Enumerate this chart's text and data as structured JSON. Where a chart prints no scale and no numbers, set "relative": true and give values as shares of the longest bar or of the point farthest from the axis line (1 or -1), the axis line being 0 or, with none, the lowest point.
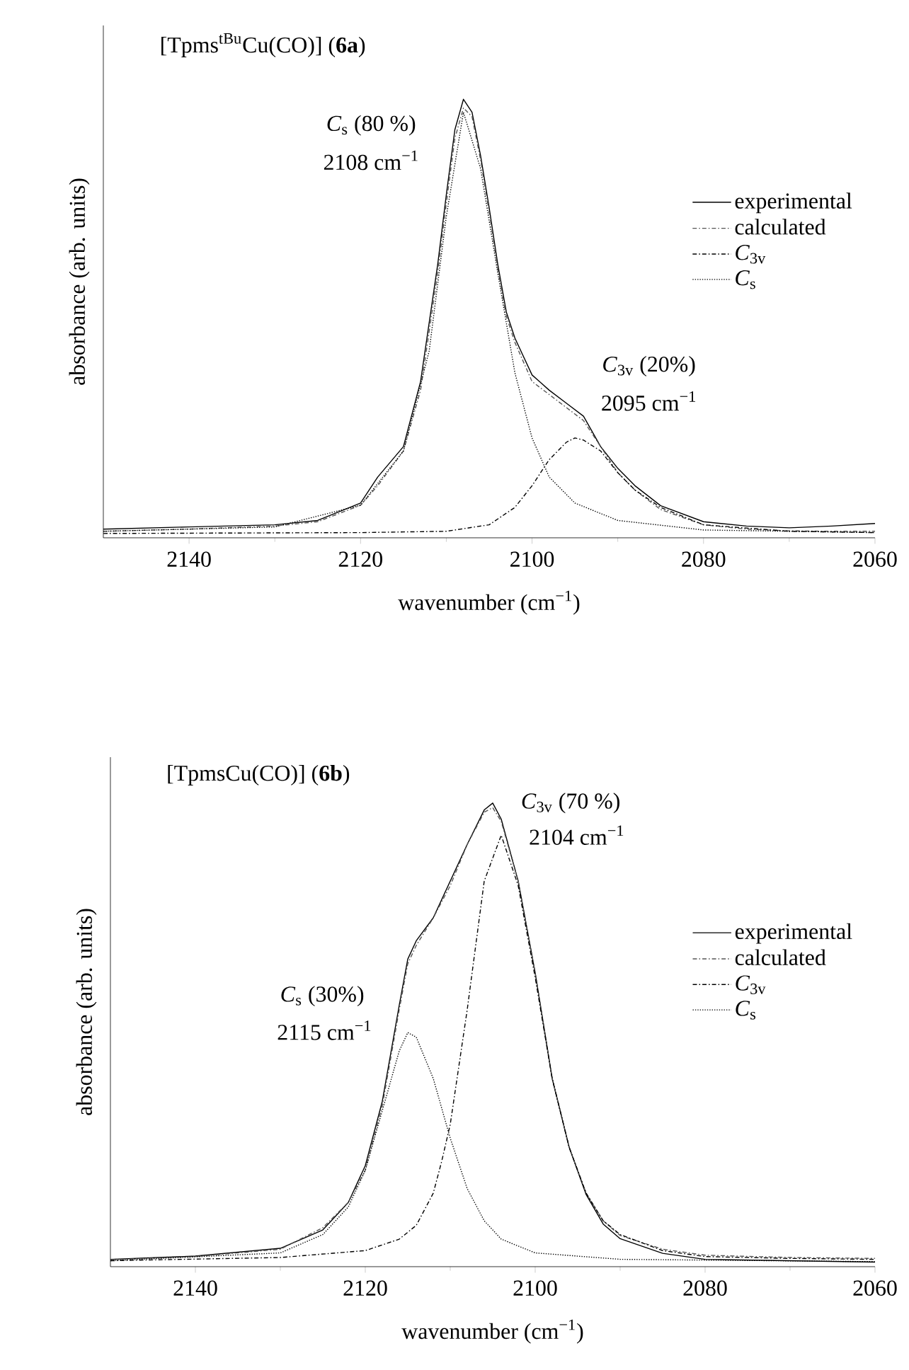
{
  "chart_data": [
    {
      "type": "line",
      "title": "[Tpms$^{tBu}$Cu(CO)] (**6a**)",
      "xlabel": "wavenumber (cm$^{−1}$)",
      "ylabel": "absorbance (arb. units)",
      "xlim": [
        2150,
        2060
      ],
      "xticks": [
        2140,
        2120,
        2100,
        2080,
        2060
      ],
      "relative": true,
      "tick_labels": "x",
      "legend": "right",
      "marker": "none",
      "annotations": [
        "*C*$_{s}$ (80 %)",
        "2108 cm$^{−1}$",
        "*C*$_{3v}$ (20%)",
        "2095 cm$^{−1}$"
      ],
      "series": [
        {
          "name": "experimental",
          "color": "#000000",
          "line_style": "solid",
          "x": [
            2150,
            2140,
            2130,
            2125,
            2120,
            2118,
            2115,
            2113,
            2111,
            2110,
            2109,
            2108,
            2107,
            2106,
            2105,
            2104,
            2103,
            2102,
            2100,
            2098,
            2096,
            2094,
            2092,
            2090,
            2088,
            2085,
            2080,
            2075,
            2070,
            2065,
            2060
          ],
          "values": [
            0.01,
            0.015,
            0.02,
            0.03,
            0.07,
            0.13,
            0.2,
            0.35,
            0.62,
            0.78,
            0.93,
            1.0,
            0.97,
            0.87,
            0.75,
            0.62,
            0.51,
            0.45,
            0.365,
            0.33,
            0.3,
            0.27,
            0.2,
            0.15,
            0.11,
            0.064,
            0.027,
            0.017,
            0.013,
            0.017,
            0.023
          ]
        },
        {
          "name": "calculated",
          "color": "#555555",
          "line_style": "dashed",
          "x": [
            2150,
            2140,
            2130,
            2125,
            2120,
            2118,
            2115,
            2113,
            2111,
            2110,
            2109,
            2108,
            2107,
            2106,
            2105,
            2104,
            2103,
            2102,
            2100,
            2098,
            2096,
            2094,
            2092,
            2090,
            2088,
            2085,
            2080,
            2075,
            2070,
            2065,
            2060
          ],
          "values": [
            0.005,
            0.01,
            0.017,
            0.027,
            0.065,
            0.11,
            0.19,
            0.33,
            0.6,
            0.76,
            0.91,
            0.98,
            0.96,
            0.86,
            0.74,
            0.61,
            0.5,
            0.44,
            0.35,
            0.32,
            0.29,
            0.26,
            0.2,
            0.14,
            0.1,
            0.055,
            0.02,
            0.01,
            0.006,
            0.005,
            0.005
          ]
        },
        {
          "name": "*C*$_{3v}$",
          "color": "#000000",
          "line_style": "dashed",
          "x": [
            2150,
            2120,
            2110,
            2105,
            2102,
            2100,
            2098,
            2096,
            2095,
            2094,
            2092,
            2090,
            2088,
            2085,
            2080,
            2070,
            2060
          ],
          "values": [
            0.0,
            0.002,
            0.005,
            0.02,
            0.06,
            0.11,
            0.17,
            0.21,
            0.22,
            0.215,
            0.19,
            0.14,
            0.1,
            0.06,
            0.02,
            0.005,
            0.002
          ]
        },
        {
          "name": "*C*$_{s}$",
          "color": "#000000",
          "line_style": "dotted",
          "x": [
            2150,
            2130,
            2120,
            2115,
            2112,
            2110,
            2108,
            2106,
            2104,
            2102,
            2100,
            2098,
            2095,
            2090,
            2080,
            2060
          ],
          "values": [
            0.005,
            0.015,
            0.065,
            0.19,
            0.42,
            0.73,
            0.97,
            0.84,
            0.6,
            0.37,
            0.22,
            0.13,
            0.07,
            0.03,
            0.008,
            0.002
          ]
        }
      ]
    },
    {
      "type": "line",
      "title": "[TpmsCu(CO)] (**6b**)",
      "xlabel": "wavenumber (cm$^{−1}$)",
      "ylabel": "absorbance (arb. units)",
      "xlim": [
        2150,
        2060
      ],
      "xticks": [
        2140,
        2120,
        2100,
        2080,
        2060
      ],
      "relative": true,
      "tick_labels": "x",
      "legend": "right",
      "marker": "none",
      "annotations": [
        "*C*$_{3v}$ (70 %)",
        "2104 cm$^{−1}$",
        "*C*$_{s}$ (30%)",
        "2115 cm$^{−1}$"
      ],
      "series": [
        {
          "name": "experimental",
          "color": "#000000",
          "line_style": "solid",
          "x": [
            2150,
            2140,
            2130,
            2125,
            2122,
            2120,
            2118,
            2116,
            2115,
            2114,
            2112,
            2110,
            2108,
            2106,
            2105,
            2104,
            2102,
            2100,
            2098,
            2096,
            2094,
            2092,
            2090,
            2085,
            2080,
            2070,
            2060
          ],
          "values": [
            0.006,
            0.013,
            0.03,
            0.07,
            0.13,
            0.21,
            0.35,
            0.56,
            0.66,
            0.7,
            0.75,
            0.83,
            0.91,
            0.985,
            1.0,
            0.965,
            0.83,
            0.63,
            0.4,
            0.25,
            0.147,
            0.083,
            0.051,
            0.019,
            0.006,
            0.003,
            0.0
          ]
        },
        {
          "name": "calculated",
          "color": "#555555",
          "line_style": "dashed",
          "x": [
            2150,
            2140,
            2130,
            2125,
            2122,
            2120,
            2118,
            2116,
            2115,
            2114,
            2112,
            2110,
            2108,
            2106,
            2105,
            2104,
            2102,
            2100,
            2098,
            2096,
            2094,
            2092,
            2090,
            2085,
            2080,
            2070,
            2060
          ],
          "values": [
            0.005,
            0.012,
            0.028,
            0.075,
            0.13,
            0.2,
            0.34,
            0.55,
            0.65,
            0.69,
            0.75,
            0.82,
            0.91,
            0.98,
            0.99,
            0.96,
            0.83,
            0.63,
            0.4,
            0.25,
            0.15,
            0.09,
            0.058,
            0.028,
            0.015,
            0.01,
            0.008
          ]
        },
        {
          "name": "*C*$_{3v}$",
          "color": "#000000",
          "line_style": "dashed",
          "x": [
            2150,
            2130,
            2120,
            2116,
            2114,
            2112,
            2111,
            2110,
            2108,
            2106,
            2104,
            2102,
            2100,
            2098,
            2096,
            2094,
            2092,
            2090,
            2085,
            2080,
            2070,
            2060
          ],
          "values": [
            0.003,
            0.01,
            0.025,
            0.05,
            0.08,
            0.15,
            0.22,
            0.3,
            0.55,
            0.83,
            0.93,
            0.82,
            0.62,
            0.4,
            0.25,
            0.15,
            0.09,
            0.06,
            0.025,
            0.012,
            0.008,
            0.006
          ]
        },
        {
          "name": "*C*$_{s}$",
          "color": "#000000",
          "line_style": "dotted",
          "x": [
            2150,
            2130,
            2125,
            2122,
            2120,
            2118,
            2116,
            2115,
            2114,
            2112,
            2110,
            2108,
            2106,
            2104,
            2100,
            2090,
            2060
          ],
          "values": [
            0.003,
            0.02,
            0.06,
            0.12,
            0.2,
            0.33,
            0.46,
            0.5,
            0.49,
            0.4,
            0.27,
            0.16,
            0.09,
            0.05,
            0.02,
            0.006,
            0.001
          ]
        }
      ]
    }
  ]
}
